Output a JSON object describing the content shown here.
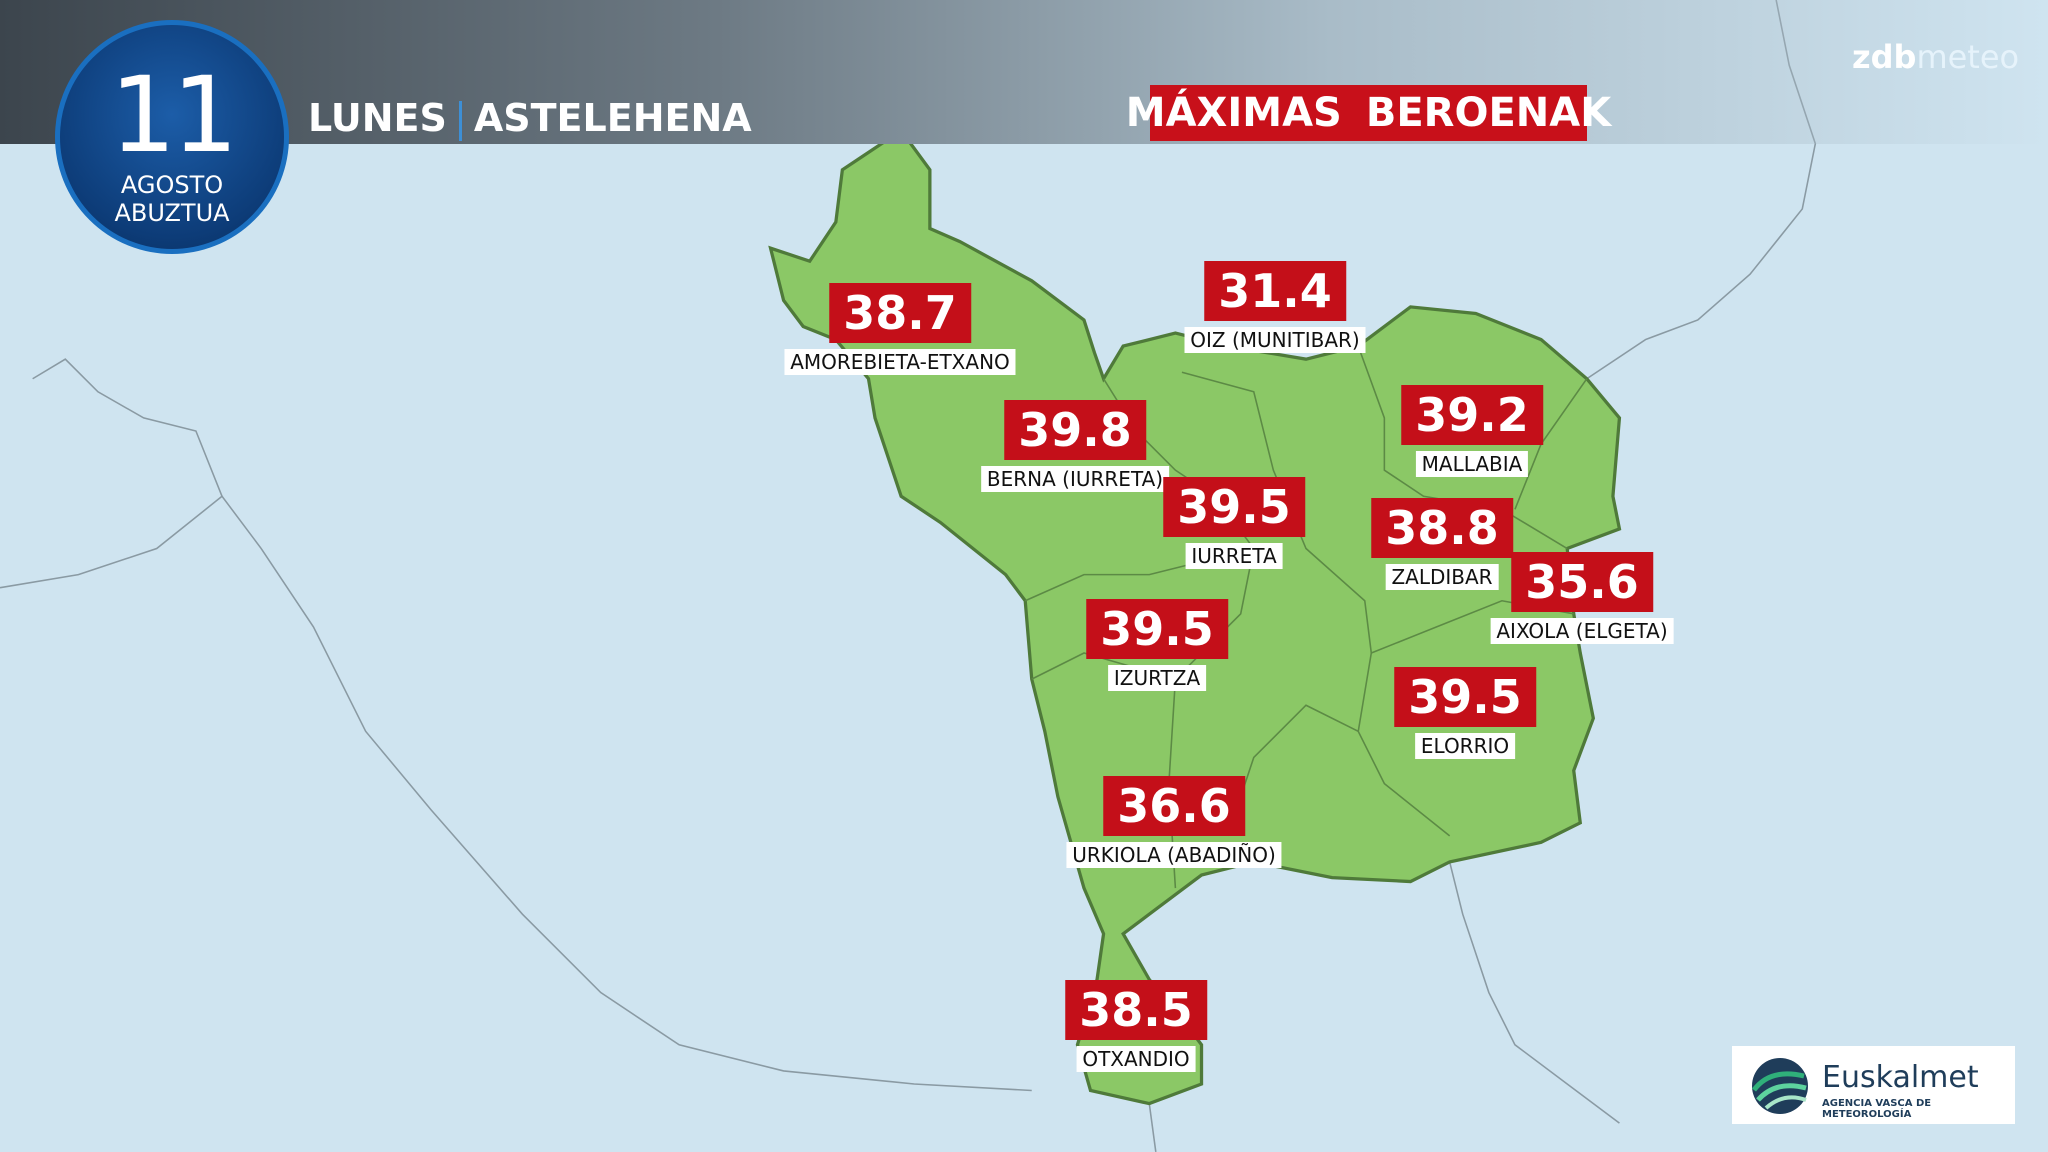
{
  "header": {
    "day": "11",
    "month_es": "AGOSTO",
    "month_eu": "ABUZTUA",
    "weekday_es": "LUNES",
    "weekday_eu": "ASTELEHENA"
  },
  "title": {
    "es": "MÁXIMAS",
    "eu": "BEROENAK"
  },
  "brand": {
    "zdb": "zdb",
    "meteo": "meteo"
  },
  "logo": {
    "name": "Euskalmet",
    "tagline": "AGENCIA VASCA DE METEOROLOGÍA"
  },
  "stations": [
    {
      "name": "AMOREBIETA-ETXANO",
      "value": 38.7
    },
    {
      "name": "OIZ (MUNITIBAR)",
      "value": 31.4
    },
    {
      "name": "BERNA (IURRETA)",
      "value": 39.8
    },
    {
      "name": "MALLABIA",
      "value": 39.2
    },
    {
      "name": "IURRETA",
      "value": 39.5
    },
    {
      "name": "ZALDIBAR",
      "value": 38.8
    },
    {
      "name": "AIXOLA (ELGETA)",
      "value": 35.6
    },
    {
      "name": "IZURTZA",
      "value": 39.5
    },
    {
      "name": "ELORRIO",
      "value": 39.5
    },
    {
      "name": "URKIOLA (ABADIÑO)",
      "value": 36.6
    },
    {
      "name": "OTXANDIO",
      "value": 38.5
    }
  ]
}
